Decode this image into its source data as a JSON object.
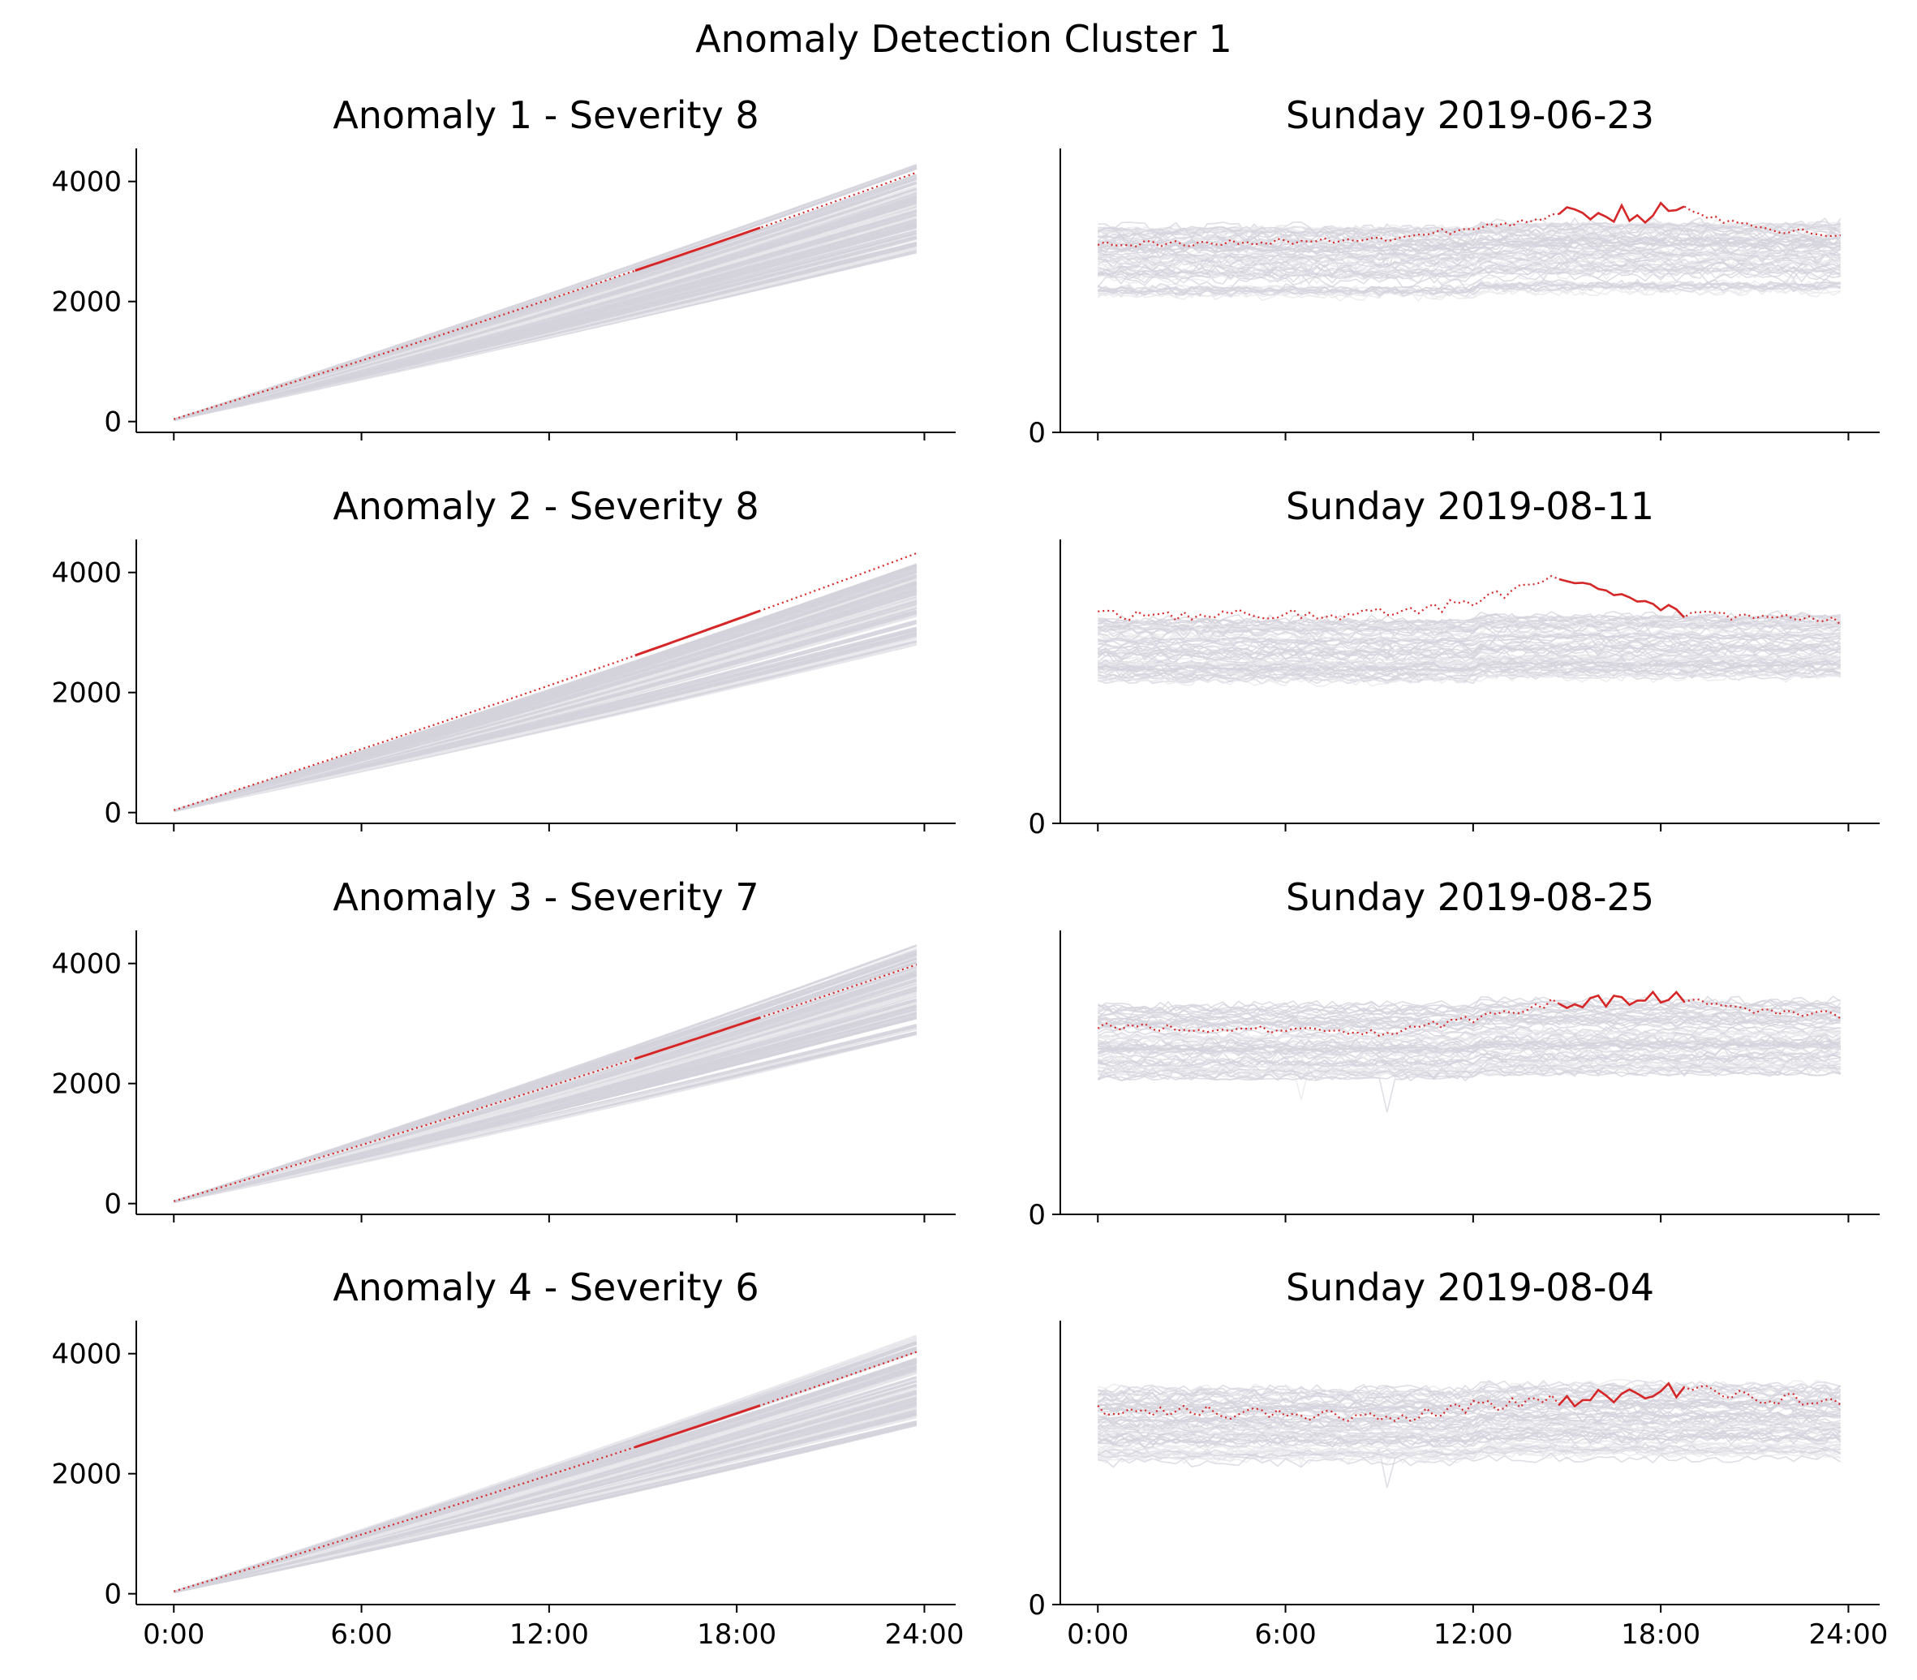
{
  "figure": {
    "title": "Anomaly Detection Cluster 1"
  },
  "colors": {
    "anomaly": "#d62728",
    "background_series": "#d4d3dc",
    "background_series_light": "#e8e8ec",
    "axis": "#000000"
  },
  "chart_data": [
    {
      "type": "line",
      "title": "Anomaly 1 - Severity 8",
      "xlabel": "",
      "ylabel": "",
      "x_ticks": [
        "0:00",
        "6:00",
        "12:00",
        "18:00",
        "24:00"
      ],
      "x_tick_labels_visible": false,
      "xlim": [
        -1.2,
        25.0
      ],
      "ylim": [
        -180,
        4550
      ],
      "y_ticks": [
        0,
        2000,
        4000
      ],
      "grid": false,
      "series": [
        {
          "role": "anomaly-cumulative",
          "x_start": 0,
          "x_end": 23.75,
          "y_start": 40,
          "y_end": 4150,
          "highlight_window": [
            14.75,
            18.75
          ]
        },
        {
          "role": "reference-cumulative-band",
          "x_start": 0,
          "x_end": 23.75,
          "y_start": 30,
          "y_end_range": [
            2800,
            4300
          ]
        }
      ]
    },
    {
      "type": "line",
      "title": "Sunday 2019-06-23",
      "xlabel": "",
      "ylabel": "",
      "x_ticks": [
        "0:00",
        "6:00",
        "12:00",
        "18:00",
        "24:00"
      ],
      "x_tick_labels_visible": false,
      "xlim": [
        -1.2,
        25.0
      ],
      "ylim": [
        0,
        100
      ],
      "y_ticks": [
        0
      ],
      "grid": false,
      "series": [
        {
          "role": "anomaly-daily",
          "x_start": 0,
          "x_end": 23.75,
          "levels": [
            [
              0,
              66
            ],
            [
              9.5,
              68
            ],
            [
              12,
              72
            ],
            [
              14.75,
              76
            ],
            [
              18.75,
              78
            ],
            [
              21,
              72
            ],
            [
              23.75,
              70
            ]
          ],
          "noise": 1.2,
          "highlight_window": [
            14.75,
            18.75
          ],
          "highlight_noise": 3.5
        },
        {
          "role": "reference-daily-band",
          "x_start": 0,
          "x_end": 23.75,
          "level_range": [
            48,
            72
          ]
        }
      ]
    },
    {
      "type": "line",
      "title": "Anomaly 2 - Severity 8",
      "xlabel": "",
      "ylabel": "",
      "x_ticks": [
        "0:00",
        "6:00",
        "12:00",
        "18:00",
        "24:00"
      ],
      "x_tick_labels_visible": false,
      "xlim": [
        -1.2,
        25.0
      ],
      "ylim": [
        -180,
        4550
      ],
      "y_ticks": [
        0,
        2000,
        4000
      ],
      "grid": false,
      "series": [
        {
          "role": "anomaly-cumulative",
          "x_start": 0,
          "x_end": 23.75,
          "y_start": 40,
          "y_end": 4320,
          "highlight_window": [
            14.75,
            18.75
          ]
        },
        {
          "role": "reference-cumulative-band",
          "x_start": 0,
          "x_end": 23.75,
          "y_start": 30,
          "y_end_range": [
            2800,
            4150
          ]
        }
      ]
    },
    {
      "type": "line",
      "title": "Sunday 2019-08-11",
      "xlabel": "",
      "ylabel": "",
      "x_ticks": [
        "0:00",
        "6:00",
        "12:00",
        "18:00",
        "24:00"
      ],
      "x_tick_labels_visible": false,
      "xlim": [
        -1.2,
        25.0
      ],
      "ylim": [
        0,
        100
      ],
      "y_ticks": [
        0
      ],
      "grid": false,
      "series": [
        {
          "role": "anomaly-daily",
          "x_start": 0,
          "x_end": 23.75,
          "levels": [
            [
              0,
              73
            ],
            [
              9.5,
              74
            ],
            [
              12,
              78
            ],
            [
              14.75,
              86
            ],
            [
              16,
              82
            ],
            [
              18.75,
              74
            ],
            [
              21,
              72
            ],
            [
              23.75,
              71
            ]
          ],
          "noise": 2.0,
          "highlight_window": [
            14.75,
            18.75
          ],
          "highlight_noise": 1.5
        },
        {
          "role": "reference-daily-band",
          "x_start": 0,
          "x_end": 23.75,
          "level_range": [
            50,
            72
          ]
        }
      ]
    },
    {
      "type": "line",
      "title": "Anomaly 3 - Severity 7",
      "xlabel": "",
      "ylabel": "",
      "x_ticks": [
        "0:00",
        "6:00",
        "12:00",
        "18:00",
        "24:00"
      ],
      "x_tick_labels_visible": false,
      "xlim": [
        -1.2,
        25.0
      ],
      "ylim": [
        -180,
        4550
      ],
      "y_ticks": [
        0,
        2000,
        4000
      ],
      "grid": false,
      "series": [
        {
          "role": "anomaly-cumulative",
          "x_start": 0,
          "x_end": 23.75,
          "y_start": 40,
          "y_end": 3980,
          "highlight_window": [
            14.75,
            18.75
          ]
        },
        {
          "role": "reference-cumulative-band",
          "x_start": 0,
          "x_end": 23.75,
          "y_start": 30,
          "y_end_range": [
            2800,
            4300
          ]
        }
      ]
    },
    {
      "type": "line",
      "title": "Sunday 2019-08-25",
      "xlabel": "",
      "ylabel": "",
      "x_ticks": [
        "0:00",
        "6:00",
        "12:00",
        "18:00",
        "24:00"
      ],
      "x_tick_labels_visible": false,
      "xlim": [
        -1.2,
        25.0
      ],
      "ylim": [
        0,
        100
      ],
      "y_ticks": [
        0
      ],
      "grid": false,
      "series": [
        {
          "role": "anomaly-daily",
          "x_start": 0,
          "x_end": 23.75,
          "levels": [
            [
              0,
              66
            ],
            [
              9.5,
              64
            ],
            [
              12,
              69
            ],
            [
              14.75,
              75
            ],
            [
              18.75,
              76
            ],
            [
              21,
              71
            ],
            [
              23.75,
              70
            ]
          ],
          "noise": 1.5,
          "highlight_window": [
            14.75,
            18.75
          ],
          "highlight_noise": 3.0
        },
        {
          "role": "reference-daily-band",
          "x_start": 0,
          "x_end": 23.75,
          "level_range": [
            48,
            74
          ]
        }
      ]
    },
    {
      "type": "line",
      "title": "Anomaly 4 - Severity 6",
      "xlabel": "",
      "ylabel": "",
      "x_ticks": [
        "0:00",
        "6:00",
        "12:00",
        "18:00",
        "24:00"
      ],
      "x_tick_labels_visible": true,
      "xlim": [
        -1.2,
        25.0
      ],
      "ylim": [
        -180,
        4550
      ],
      "y_ticks": [
        0,
        2000,
        4000
      ],
      "grid": false,
      "series": [
        {
          "role": "anomaly-cumulative",
          "x_start": 0,
          "x_end": 23.75,
          "y_start": 40,
          "y_end": 4030,
          "highlight_window": [
            14.75,
            18.75
          ]
        },
        {
          "role": "reference-cumulative-band",
          "x_start": 0,
          "x_end": 23.75,
          "y_start": 30,
          "y_end_range": [
            2800,
            4300
          ]
        }
      ]
    },
    {
      "type": "line",
      "title": "Sunday 2019-08-04",
      "xlabel": "",
      "ylabel": "",
      "x_ticks": [
        "0:00",
        "6:00",
        "12:00",
        "18:00",
        "24:00"
      ],
      "x_tick_labels_visible": true,
      "xlim": [
        -1.2,
        25.0
      ],
      "ylim": [
        0,
        100
      ],
      "y_ticks": [
        0
      ],
      "grid": false,
      "series": [
        {
          "role": "anomaly-daily",
          "x_start": 0,
          "x_end": 23.75,
          "levels": [
            [
              0,
              69
            ],
            [
              9.5,
              66
            ],
            [
              12,
              70
            ],
            [
              14.75,
              72
            ],
            [
              18.75,
              76
            ],
            [
              21,
              73
            ],
            [
              23.75,
              72
            ]
          ],
          "noise": 2.2,
          "highlight_window": [
            14.75,
            18.75
          ],
          "highlight_noise": 3.0
        },
        {
          "role": "reference-daily-band",
          "x_start": 0,
          "x_end": 23.75,
          "level_range": [
            50,
            76
          ]
        }
      ]
    }
  ]
}
